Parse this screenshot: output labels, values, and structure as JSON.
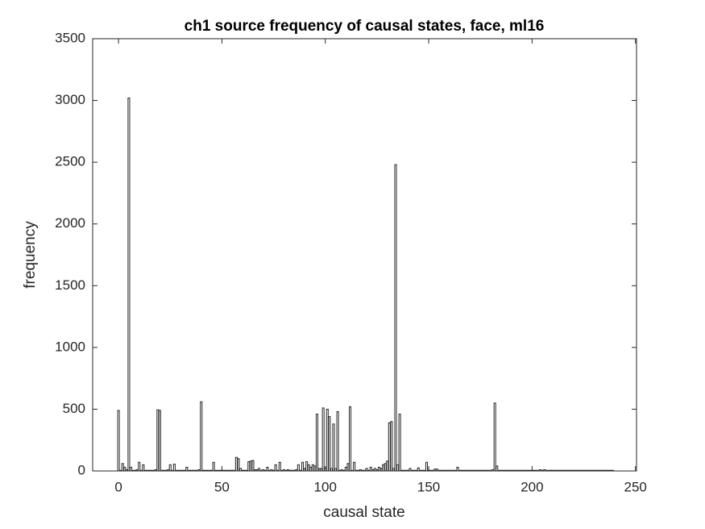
{
  "chart_data": {
    "type": "bar",
    "title": "ch1 source frequency of causal states, face, ml16",
    "x_label": "causal state",
    "y_label": "frequency",
    "x": [
      0,
      1,
      2,
      3,
      4,
      5,
      6,
      7,
      8,
      9,
      10,
      11,
      12,
      13,
      14,
      15,
      16,
      17,
      18,
      19,
      20,
      21,
      22,
      23,
      24,
      25,
      26,
      27,
      28,
      29,
      30,
      31,
      32,
      33,
      34,
      35,
      36,
      37,
      38,
      39,
      40,
      41,
      42,
      43,
      44,
      45,
      46,
      47,
      48,
      49,
      50,
      51,
      52,
      53,
      54,
      55,
      56,
      57,
      58,
      59,
      60,
      61,
      62,
      63,
      64,
      65,
      66,
      67,
      68,
      69,
      70,
      71,
      72,
      73,
      74,
      75,
      76,
      77,
      78,
      79,
      80,
      81,
      82,
      83,
      84,
      85,
      86,
      87,
      88,
      89,
      90,
      91,
      92,
      93,
      94,
      95,
      96,
      97,
      98,
      99,
      100,
      101,
      102,
      103,
      104,
      105,
      106,
      107,
      108,
      109,
      110,
      111,
      112,
      113,
      114,
      115,
      116,
      117,
      118,
      119,
      120,
      121,
      122,
      123,
      124,
      125,
      126,
      127,
      128,
      129,
      130,
      131,
      132,
      133,
      134,
      135,
      136,
      137,
      138,
      139,
      140,
      141,
      142,
      143,
      144,
      145,
      146,
      147,
      148,
      149,
      150,
      151,
      152,
      153,
      154,
      155,
      156,
      157,
      158,
      159,
      160,
      161,
      162,
      163,
      164,
      165,
      166,
      167,
      168,
      169,
      170,
      171,
      172,
      173,
      174,
      175,
      176,
      177,
      178,
      179,
      180,
      181,
      182,
      183,
      184,
      185,
      186,
      187,
      188,
      189,
      190,
      191,
      192,
      193,
      194,
      195,
      196,
      197,
      198,
      199,
      200,
      201,
      202,
      203,
      204,
      205,
      206,
      207,
      208,
      209,
      210,
      211,
      212,
      213,
      214,
      215,
      216,
      217,
      218,
      219,
      220,
      221,
      222,
      223,
      224,
      225,
      226,
      227,
      228,
      229,
      230,
      231,
      232,
      233,
      234,
      235,
      236,
      237,
      238,
      239
    ],
    "values": [
      490,
      5,
      60,
      30,
      10,
      3020,
      30,
      5,
      5,
      10,
      70,
      5,
      50,
      5,
      5,
      5,
      5,
      5,
      10,
      495,
      490,
      5,
      5,
      5,
      10,
      50,
      5,
      55,
      5,
      5,
      5,
      5,
      5,
      30,
      5,
      5,
      5,
      5,
      5,
      10,
      560,
      5,
      5,
      5,
      5,
      5,
      70,
      5,
      5,
      5,
      5,
      5,
      5,
      5,
      5,
      5,
      5,
      110,
      100,
      20,
      5,
      5,
      5,
      75,
      80,
      85,
      10,
      10,
      20,
      5,
      10,
      5,
      30,
      5,
      10,
      5,
      50,
      5,
      70,
      5,
      10,
      5,
      10,
      5,
      5,
      5,
      10,
      50,
      5,
      70,
      20,
      75,
      50,
      30,
      50,
      40,
      460,
      20,
      20,
      510,
      20,
      500,
      440,
      20,
      380,
      20,
      480,
      5,
      10,
      5,
      30,
      60,
      520,
      5,
      70,
      5,
      5,
      10,
      5,
      5,
      20,
      5,
      30,
      10,
      20,
      10,
      30,
      20,
      50,
      60,
      80,
      390,
      400,
      20,
      2480,
      50,
      460,
      5,
      5,
      5,
      5,
      20,
      5,
      5,
      5,
      25,
      5,
      5,
      5,
      70,
      5,
      5,
      5,
      15,
      15,
      5,
      5,
      5,
      5,
      5,
      5,
      5,
      5,
      5,
      30,
      5,
      5,
      5,
      5,
      5,
      5,
      5,
      5,
      5,
      5,
      5,
      5,
      5,
      5,
      5,
      5,
      10,
      550,
      40,
      5,
      5,
      5,
      5,
      5,
      5,
      5,
      5,
      5,
      5,
      5,
      5,
      5,
      5,
      5,
      5,
      5,
      5,
      5,
      5,
      10,
      5,
      10,
      5,
      5,
      5,
      5,
      5,
      5,
      5,
      5,
      5,
      5,
      5,
      5,
      5,
      5,
      5,
      5,
      5,
      5,
      5,
      5,
      5,
      5,
      5,
      5,
      5,
      5,
      5,
      5,
      5,
      5,
      5,
      5,
      5
    ],
    "color": "#ffffff",
    "xlim": [
      -12.5,
      250.5
    ],
    "xticks": [
      0,
      50,
      100,
      150,
      200,
      250
    ],
    "ylim": [
      0,
      3500
    ],
    "yticks": [
      0,
      500,
      1000,
      1500,
      2000,
      2500,
      3000,
      3500
    ]
  }
}
